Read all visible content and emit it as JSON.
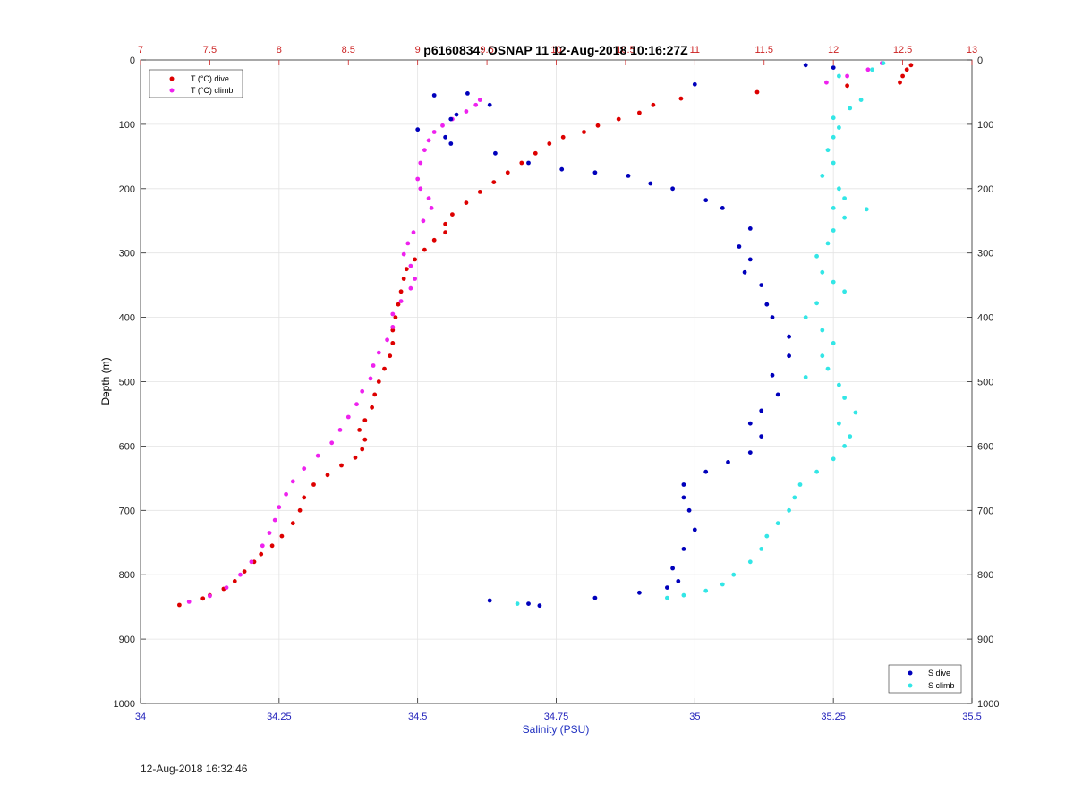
{
  "figure": {
    "title": "p6160834: OSNAP 11 12-Aug-2018 10:16:27Z",
    "timestamp": "12-Aug-2018 16:32:46"
  },
  "chart_data": {
    "type": "scatter",
    "title": "p6160834: OSNAP 11 12-Aug-2018 10:16:27Z",
    "xlabel": "Salinity (PSU)",
    "ylabel": "Depth (m)",
    "x_top_label": "",
    "xlim": [
      34,
      35.5
    ],
    "x_top_lim": [
      7,
      13
    ],
    "ylim": [
      0,
      1000
    ],
    "y_reversed": true,
    "grid": true,
    "x_ticks": [
      "34",
      "34.25",
      "34.5",
      "34.75",
      "35",
      "35.25",
      "35.5"
    ],
    "x_top_ticks": [
      "7",
      "7.5",
      "8",
      "8.5",
      "9",
      "9.5",
      "10",
      "10.5",
      "11",
      "11.5",
      "12",
      "12.5",
      "13"
    ],
    "y_ticks": [
      "0",
      "100",
      "200",
      "300",
      "400",
      "500",
      "600",
      "700",
      "800",
      "900",
      "1000"
    ],
    "colors": {
      "t_dive": "#dd0000",
      "t_climb": "#ee22ee",
      "s_dive": "#0000bb",
      "s_climb": "#33e6e6",
      "top_axis": "#cc2222",
      "bottom_axis": "#2222bb"
    },
    "legend_top": {
      "placement": "top-left",
      "entries": [
        "T (°C) dive",
        "T (°C) climb"
      ]
    },
    "legend_bottom": {
      "placement": "bottom-right",
      "entries": [
        "S dive",
        "S climb"
      ]
    },
    "series": [
      {
        "name": "T (°C) dive",
        "axis": "top",
        "points": [
          [
            12.56,
            8
          ],
          [
            12.53,
            15
          ],
          [
            12.5,
            25
          ],
          [
            12.48,
            35
          ],
          [
            12.1,
            40
          ],
          [
            11.45,
            50
          ],
          [
            10.9,
            60
          ],
          [
            10.7,
            70
          ],
          [
            10.6,
            82
          ],
          [
            10.45,
            92
          ],
          [
            10.3,
            102
          ],
          [
            10.2,
            112
          ],
          [
            10.05,
            120
          ],
          [
            9.95,
            130
          ],
          [
            9.85,
            145
          ],
          [
            9.75,
            160
          ],
          [
            9.65,
            175
          ],
          [
            9.55,
            190
          ],
          [
            9.45,
            205
          ],
          [
            9.35,
            222
          ],
          [
            9.25,
            240
          ],
          [
            9.2,
            255
          ],
          [
            9.2,
            268
          ],
          [
            9.12,
            280
          ],
          [
            9.05,
            295
          ],
          [
            8.98,
            310
          ],
          [
            8.92,
            325
          ],
          [
            8.9,
            340
          ],
          [
            8.88,
            360
          ],
          [
            8.86,
            380
          ],
          [
            8.84,
            400
          ],
          [
            8.82,
            420
          ],
          [
            8.82,
            440
          ],
          [
            8.8,
            460
          ],
          [
            8.76,
            480
          ],
          [
            8.72,
            500
          ],
          [
            8.69,
            520
          ],
          [
            8.67,
            540
          ],
          [
            8.62,
            560
          ],
          [
            8.58,
            575
          ],
          [
            8.62,
            590
          ],
          [
            8.6,
            605
          ],
          [
            8.55,
            618
          ],
          [
            8.45,
            630
          ],
          [
            8.35,
            645
          ],
          [
            8.25,
            660
          ],
          [
            8.18,
            680
          ],
          [
            8.15,
            700
          ],
          [
            8.1,
            720
          ],
          [
            8.02,
            740
          ],
          [
            7.95,
            755
          ],
          [
            7.87,
            768
          ],
          [
            7.82,
            780
          ],
          [
            7.75,
            795
          ],
          [
            7.68,
            810
          ],
          [
            7.6,
            822
          ],
          [
            7.5,
            832
          ],
          [
            7.45,
            837
          ],
          [
            7.28,
            847
          ]
        ]
      },
      {
        "name": "T (°C) climb",
        "axis": "top",
        "points": [
          [
            12.35,
            5
          ],
          [
            12.25,
            15
          ],
          [
            12.1,
            25
          ],
          [
            11.95,
            35
          ],
          [
            9.45,
            62
          ],
          [
            9.42,
            70
          ],
          [
            9.35,
            80
          ],
          [
            9.25,
            92
          ],
          [
            9.18,
            102
          ],
          [
            9.12,
            112
          ],
          [
            9.08,
            125
          ],
          [
            9.05,
            140
          ],
          [
            9.02,
            160
          ],
          [
            9.0,
            185
          ],
          [
            9.02,
            200
          ],
          [
            9.08,
            215
          ],
          [
            9.1,
            230
          ],
          [
            9.04,
            250
          ],
          [
            8.97,
            268
          ],
          [
            8.93,
            285
          ],
          [
            8.9,
            302
          ],
          [
            8.95,
            320
          ],
          [
            8.98,
            340
          ],
          [
            8.95,
            355
          ],
          [
            8.88,
            375
          ],
          [
            8.82,
            395
          ],
          [
            8.82,
            415
          ],
          [
            8.78,
            435
          ],
          [
            8.72,
            455
          ],
          [
            8.68,
            475
          ],
          [
            8.66,
            495
          ],
          [
            8.6,
            515
          ],
          [
            8.56,
            535
          ],
          [
            8.5,
            555
          ],
          [
            8.44,
            575
          ],
          [
            8.38,
            595
          ],
          [
            8.28,
            615
          ],
          [
            8.18,
            635
          ],
          [
            8.1,
            655
          ],
          [
            8.05,
            675
          ],
          [
            8.0,
            695
          ],
          [
            7.97,
            715
          ],
          [
            7.93,
            735
          ],
          [
            7.88,
            755
          ],
          [
            7.8,
            780
          ],
          [
            7.72,
            800
          ],
          [
            7.62,
            820
          ],
          [
            7.5,
            833
          ],
          [
            7.35,
            842
          ]
        ]
      },
      {
        "name": "S dive",
        "axis": "bottom",
        "points": [
          [
            35.2,
            8
          ],
          [
            35.25,
            12
          ],
          [
            35,
            38
          ],
          [
            34.59,
            52
          ],
          [
            34.53,
            55
          ],
          [
            34.63,
            70
          ],
          [
            34.57,
            85
          ],
          [
            34.56,
            92
          ],
          [
            34.5,
            108
          ],
          [
            34.55,
            120
          ],
          [
            34.56,
            130
          ],
          [
            34.64,
            145
          ],
          [
            34.7,
            160
          ],
          [
            34.76,
            170
          ],
          [
            34.82,
            175
          ],
          [
            34.88,
            180
          ],
          [
            34.92,
            192
          ],
          [
            34.96,
            200
          ],
          [
            35.02,
            218
          ],
          [
            35.05,
            230
          ],
          [
            35.1,
            262
          ],
          [
            35.08,
            290
          ],
          [
            35.1,
            310
          ],
          [
            35.09,
            330
          ],
          [
            35.12,
            350
          ],
          [
            35.13,
            380
          ],
          [
            35.14,
            400
          ],
          [
            35.17,
            430
          ],
          [
            35.17,
            460
          ],
          [
            35.14,
            490
          ],
          [
            35.15,
            520
          ],
          [
            35.12,
            545
          ],
          [
            35.1,
            565
          ],
          [
            35.12,
            585
          ],
          [
            35.1,
            610
          ],
          [
            35.06,
            625
          ],
          [
            35.02,
            640
          ],
          [
            34.98,
            660
          ],
          [
            34.98,
            680
          ],
          [
            34.99,
            700
          ],
          [
            35.0,
            730
          ],
          [
            34.98,
            760
          ],
          [
            34.96,
            790
          ],
          [
            34.97,
            810
          ],
          [
            34.95,
            820
          ],
          [
            34.9,
            828
          ],
          [
            34.82,
            836
          ],
          [
            34.63,
            840
          ],
          [
            34.7,
            845
          ],
          [
            34.72,
            848
          ]
        ]
      },
      {
        "name": "S climb",
        "axis": "bottom",
        "points": [
          [
            35.34,
            5
          ],
          [
            35.32,
            15
          ],
          [
            35.26,
            25
          ],
          [
            35.3,
            62
          ],
          [
            35.28,
            75
          ],
          [
            35.25,
            90
          ],
          [
            35.26,
            105
          ],
          [
            35.25,
            120
          ],
          [
            35.24,
            140
          ],
          [
            35.25,
            160
          ],
          [
            35.23,
            180
          ],
          [
            35.26,
            200
          ],
          [
            35.27,
            215
          ],
          [
            35.25,
            230
          ],
          [
            35.31,
            232
          ],
          [
            35.27,
            245
          ],
          [
            35.25,
            265
          ],
          [
            35.24,
            285
          ],
          [
            35.22,
            305
          ],
          [
            35.23,
            330
          ],
          [
            35.25,
            345
          ],
          [
            35.27,
            360
          ],
          [
            35.22,
            378
          ],
          [
            35.2,
            400
          ],
          [
            35.23,
            420
          ],
          [
            35.25,
            440
          ],
          [
            35.23,
            460
          ],
          [
            35.24,
            480
          ],
          [
            35.2,
            493
          ],
          [
            35.26,
            505
          ],
          [
            35.27,
            525
          ],
          [
            35.29,
            548
          ],
          [
            35.26,
            565
          ],
          [
            35.28,
            585
          ],
          [
            35.27,
            600
          ],
          [
            35.25,
            620
          ],
          [
            35.22,
            640
          ],
          [
            35.19,
            660
          ],
          [
            35.18,
            680
          ],
          [
            35.17,
            700
          ],
          [
            35.15,
            720
          ],
          [
            35.13,
            740
          ],
          [
            35.12,
            760
          ],
          [
            35.1,
            780
          ],
          [
            35.07,
            800
          ],
          [
            35.05,
            815
          ],
          [
            35.02,
            825
          ],
          [
            34.98,
            832
          ],
          [
            34.95,
            836
          ],
          [
            34.68,
            845
          ]
        ]
      }
    ]
  }
}
